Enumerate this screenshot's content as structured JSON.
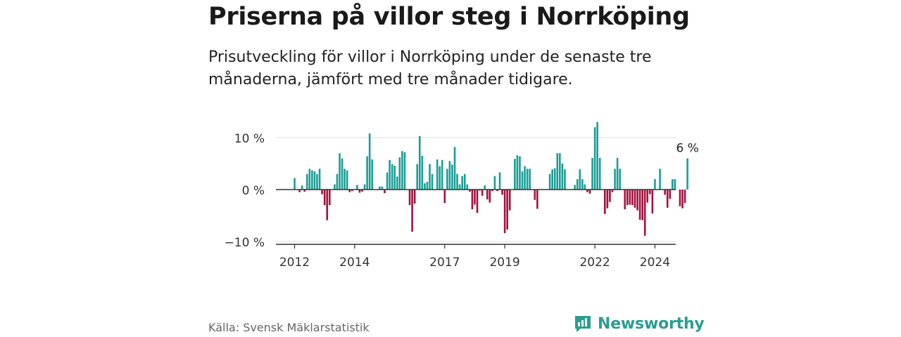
{
  "title": "Priserna på villor steg i Norrköping",
  "subtitle": "Prisutveckling för villor i Norrköping under de senaste tre månaderna, jämfört med tre månader tidigare.",
  "source": "Källa: Svensk Mäklarstatistik",
  "brand": "Newsworthy",
  "colors": {
    "positive": "#1a9e96",
    "negative": "#a3123f",
    "grid": "#dddddd",
    "axis": "#333333",
    "brand": "#2a9d8f"
  },
  "chart_data": {
    "type": "bar",
    "title": "Priserna på villor steg i Norrköping",
    "xlabel": "",
    "ylabel": "",
    "ylim": [
      -10,
      13
    ],
    "y_ticks": [
      10,
      0,
      -10
    ],
    "y_tick_labels": [
      "10 %",
      "0 %",
      "−10 %"
    ],
    "x_ticks": [
      2012,
      2014,
      2017,
      2019,
      2022,
      2024
    ],
    "x_tick_labels": [
      "2012",
      "2014",
      "2017",
      "2019",
      "2022",
      "2024"
    ],
    "annotation": "6 %",
    "series": [
      {
        "name": "Prisutveckling",
        "start": "2012-01",
        "frequency": "monthly",
        "values": [
          2.2,
          0,
          -0.5,
          0.8,
          -0.4,
          3.0,
          4.0,
          3.7,
          3.5,
          3.0,
          4.0,
          -0.9,
          -3.0,
          -5.9,
          -3.0,
          0,
          1.0,
          3.0,
          7.0,
          6.0,
          4.0,
          3.7,
          -0.5,
          -0.3,
          0,
          0.9,
          -0.6,
          -0.4,
          1.0,
          6.4,
          10.8,
          5.8,
          0,
          0,
          0.6,
          0.6,
          -0.7,
          3.3,
          5.7,
          4.9,
          4.6,
          2.5,
          6.2,
          7.4,
          7.2,
          0,
          -3.0,
          -8.1,
          -2.7,
          4.9,
          10.3,
          6.5,
          1.2,
          1.5,
          4.9,
          3.0,
          0,
          5.8,
          4.5,
          5.7,
          -2.6,
          4.0,
          5.5,
          4.8,
          8.2,
          3.0,
          1.0,
          2.6,
          3.0,
          1.0,
          -0.4,
          -3.8,
          -2.9,
          -4.5,
          -0.2,
          -1.2,
          0.8,
          -1.9,
          -2.5,
          -0.3,
          2.6,
          -0.3,
          3.3,
          -1.0,
          -8.4,
          -7.7,
          -4.0,
          0,
          5.9,
          6.6,
          6.4,
          3.5,
          4.5,
          4.0,
          4.0,
          0,
          -2.0,
          -3.7,
          0,
          0,
          0,
          0,
          3.0,
          3.9,
          4.1,
          7.0,
          7.0,
          5.0,
          3.9,
          0,
          0,
          0,
          0.9,
          2.0,
          3.9,
          2.0,
          1.0,
          -0.5,
          -0.8,
          6.1,
          12.0,
          13.0,
          6.1,
          0,
          -4.7,
          -3.6,
          -2.4,
          -0.5,
          4.0,
          6.1,
          4.0,
          0,
          -3.8,
          -3.0,
          -2.9,
          -3.0,
          -3.5,
          -4.0,
          -5.8,
          -5.9,
          -8.9,
          -2.5,
          -0.9,
          -4.6,
          2.0,
          0,
          4.0,
          0,
          -1.0,
          -3.5,
          -1.8,
          2.0,
          2.0,
          0,
          -3.2,
          -3.6,
          -2.6,
          6.0
        ]
      }
    ]
  }
}
